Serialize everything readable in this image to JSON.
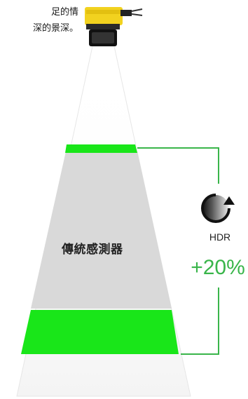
{
  "caption_lines": [
    "足的情",
    "深的景深。"
  ],
  "sensor_label": "傳統感測器",
  "hdr_label": "HDR",
  "gain_label": "+20%",
  "icons": [
    "camera-sensor-icon",
    "hdr-cycle-icon"
  ],
  "colors": {
    "band": "#19e619",
    "cone": "#d9d9d9",
    "bracket": "#39b54a",
    "camera": "#f2d21f"
  }
}
